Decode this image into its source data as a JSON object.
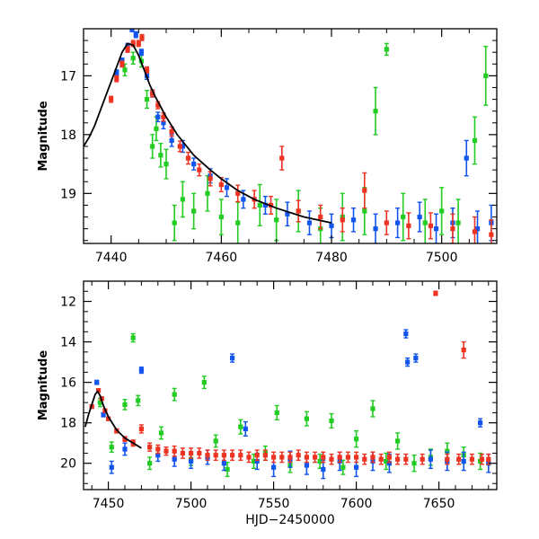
{
  "chart_data": [
    {
      "type": "scatter",
      "title": "",
      "xlabel": "",
      "ylabel": "Magnitude",
      "xlim": [
        7435,
        7510
      ],
      "ylim": [
        19.85,
        16.2
      ],
      "y_inverted": true,
      "grid": false,
      "legend": "none",
      "x_ticks": [
        7440,
        7460,
        7480,
        7500
      ],
      "y_ticks": [
        17,
        18,
        19
      ],
      "model_curve": {
        "color": "#000000",
        "x": [
          7435,
          7436,
          7437,
          7438,
          7439,
          7440,
          7441,
          7442,
          7443,
          7444,
          7445,
          7446,
          7447,
          7448,
          7450,
          7452,
          7455,
          7458,
          7460,
          7463,
          7466,
          7470,
          7475,
          7480
        ],
        "y": [
          18.2,
          18.05,
          17.85,
          17.6,
          17.35,
          17.1,
          16.85,
          16.6,
          16.45,
          16.48,
          16.65,
          16.9,
          17.15,
          17.35,
          17.7,
          18.0,
          18.35,
          18.6,
          18.75,
          18.95,
          19.1,
          19.25,
          19.4,
          19.5
        ]
      },
      "series": [
        {
          "name": "",
          "color": "#22cc22",
          "x": [
            7442.5,
            7444.0,
            7445.5,
            7446.5,
            7447.5,
            7448.2,
            7449.0,
            7450.0,
            7451.5,
            7453.0,
            7455.0,
            7457.5,
            7460.0,
            7463.0,
            7467.0,
            7470.0,
            7474.0,
            7478.0,
            7482.0,
            7486.0,
            7488.0,
            7490.0,
            7493.0,
            7497.0,
            7500.0,
            7503.0,
            7506.0,
            7508.0
          ],
          "y": [
            16.9,
            16.7,
            16.75,
            17.4,
            18.2,
            17.9,
            18.35,
            18.5,
            19.5,
            19.1,
            19.3,
            19.0,
            19.4,
            19.5,
            19.2,
            19.45,
            19.3,
            19.6,
            19.4,
            19.3,
            17.6,
            16.55,
            19.4,
            19.5,
            19.3,
            19.5,
            18.1,
            17.0
          ],
          "err": [
            0.1,
            0.1,
            0.1,
            0.15,
            0.2,
            0.2,
            0.2,
            0.25,
            0.3,
            0.3,
            0.3,
            0.3,
            0.3,
            0.35,
            0.35,
            0.35,
            0.35,
            0.35,
            0.4,
            0.4,
            0.4,
            0.1,
            0.4,
            0.4,
            0.4,
            0.4,
            0.4,
            0.5
          ]
        },
        {
          "name": "",
          "color": "#1155ee",
          "x": [
            7441.0,
            7442.0,
            7443.0,
            7443.8,
            7444.5,
            7445.5,
            7446.5,
            7447.5,
            7448.5,
            7449.5,
            7451.0,
            7453.0,
            7455.0,
            7458.0,
            7461.0,
            7464.0,
            7468.0,
            7472.0,
            7476.0,
            7480.0,
            7484.0,
            7488.0,
            7492.0,
            7496.0,
            7499.0,
            7502.0,
            7504.5,
            7506.5,
            7509.0
          ],
          "y": [
            16.95,
            16.75,
            16.5,
            16.2,
            16.3,
            16.6,
            17.0,
            17.3,
            17.7,
            17.8,
            18.1,
            18.2,
            18.5,
            18.7,
            18.9,
            19.1,
            19.2,
            19.35,
            19.5,
            19.55,
            19.45,
            19.6,
            19.5,
            19.4,
            19.6,
            19.5,
            18.4,
            19.6,
            19.5
          ],
          "err": [
            0.05,
            0.05,
            0.05,
            0.05,
            0.05,
            0.05,
            0.06,
            0.06,
            0.08,
            0.1,
            0.1,
            0.1,
            0.1,
            0.12,
            0.15,
            0.15,
            0.15,
            0.2,
            0.2,
            0.2,
            0.2,
            0.25,
            0.25,
            0.25,
            0.25,
            0.25,
            0.3,
            0.3,
            0.3
          ]
        },
        {
          "name": "",
          "color": "#ee3322",
          "x": [
            7440.0,
            7441.0,
            7442.0,
            7443.0,
            7444.0,
            7445.0,
            7445.6,
            7446.5,
            7447.5,
            7448.5,
            7449.5,
            7451.0,
            7452.5,
            7454.0,
            7456.0,
            7458.0,
            7460.0,
            7463.0,
            7466.0,
            7469.0,
            7471.0,
            7474.0,
            7478.0,
            7482.0,
            7486.0,
            7490.0,
            7494.0,
            7498.0,
            7502.0,
            7506.0,
            7509.0
          ],
          "y": [
            17.4,
            17.05,
            16.8,
            16.55,
            16.45,
            16.45,
            16.35,
            16.9,
            17.3,
            17.5,
            17.7,
            17.95,
            18.2,
            18.4,
            18.6,
            18.75,
            18.85,
            19.0,
            19.1,
            19.2,
            18.4,
            19.3,
            19.4,
            19.45,
            18.95,
            19.5,
            19.55,
            19.55,
            19.6,
            19.65,
            19.7
          ],
          "err": [
            0.05,
            0.05,
            0.05,
            0.05,
            0.05,
            0.05,
            0.05,
            0.05,
            0.06,
            0.06,
            0.07,
            0.08,
            0.09,
            0.1,
            0.1,
            0.12,
            0.12,
            0.14,
            0.15,
            0.15,
            0.2,
            0.18,
            0.2,
            0.2,
            0.3,
            0.2,
            0.22,
            0.22,
            0.25,
            0.25,
            0.25
          ]
        }
      ]
    },
    {
      "type": "scatter",
      "title": "",
      "xlabel": "HJD−2450000",
      "ylabel": "Magnitude",
      "xlim": [
        7435,
        7685
      ],
      "ylim": [
        21.3,
        11.0
      ],
      "y_inverted": true,
      "grid": false,
      "legend": "none",
      "x_ticks": [
        7450,
        7500,
        7550,
        7600,
        7650
      ],
      "y_ticks": [
        12,
        14,
        16,
        18,
        20
      ],
      "model_curve": {
        "color": "#000000",
        "x": [
          7436,
          7438,
          7440,
          7442,
          7443.5,
          7445,
          7447,
          7450,
          7455,
          7460,
          7470
        ],
        "y": [
          18.2,
          17.6,
          17.1,
          16.6,
          16.45,
          16.65,
          17.15,
          17.7,
          18.35,
          18.75,
          19.25
        ]
      },
      "series": [
        {
          "name": "",
          "color": "#22cc22",
          "x": [
            7445,
            7452,
            7460,
            7465,
            7468,
            7475,
            7482,
            7490,
            7500,
            7508,
            7515,
            7522,
            7530,
            7538,
            7545,
            7552,
            7560,
            7570,
            7578,
            7585,
            7592,
            7600,
            7610,
            7618,
            7625,
            7635,
            7645,
            7655,
            7665,
            7675
          ],
          "y": [
            17.0,
            19.2,
            17.1,
            13.8,
            16.9,
            20.0,
            18.5,
            16.6,
            19.8,
            16.0,
            18.9,
            20.3,
            18.2,
            19.9,
            19.5,
            17.5,
            20.1,
            17.8,
            19.9,
            17.9,
            20.2,
            18.8,
            17.3,
            19.9,
            18.9,
            20.0,
            19.7,
            19.4,
            19.6,
            19.9
          ],
          "err": [
            0.2,
            0.25,
            0.25,
            0.2,
            0.25,
            0.3,
            0.3,
            0.3,
            0.3,
            0.3,
            0.3,
            0.35,
            0.35,
            0.35,
            0.35,
            0.35,
            0.35,
            0.35,
            0.35,
            0.35,
            0.35,
            0.4,
            0.4,
            0.4,
            0.4,
            0.4,
            0.4,
            0.4,
            0.4,
            0.4
          ]
        },
        {
          "name": "",
          "color": "#1155ee",
          "x": [
            7443,
            7447,
            7452,
            7460,
            7470,
            7480,
            7490,
            7500,
            7510,
            7520,
            7525,
            7533,
            7540,
            7550,
            7560,
            7570,
            7580,
            7590,
            7600,
            7610,
            7620,
            7630,
            7631,
            7636,
            7645,
            7655,
            7665,
            7675,
            7680
          ],
          "y": [
            16.0,
            17.6,
            20.2,
            19.3,
            15.4,
            19.6,
            19.8,
            19.9,
            19.7,
            20.0,
            14.8,
            18.3,
            19.9,
            20.2,
            19.8,
            20.1,
            20.3,
            19.9,
            20.2,
            19.9,
            20.0,
            13.6,
            15.0,
            14.8,
            19.8,
            19.9,
            19.9,
            18.0,
            20.0
          ],
          "err": [
            0.1,
            0.1,
            0.3,
            0.3,
            0.15,
            0.3,
            0.35,
            0.35,
            0.35,
            0.35,
            0.2,
            0.35,
            0.4,
            0.45,
            0.4,
            0.45,
            0.45,
            0.45,
            0.45,
            0.45,
            0.45,
            0.2,
            0.2,
            0.2,
            0.45,
            0.45,
            0.45,
            0.2,
            0.45
          ]
        },
        {
          "name": "",
          "color": "#ee3322",
          "x": [
            7440,
            7444,
            7446,
            7448,
            7450,
            7455,
            7460,
            7465,
            7470,
            7475,
            7480,
            7485,
            7490,
            7495,
            7500,
            7505,
            7510,
            7515,
            7520,
            7525,
            7530,
            7535,
            7540,
            7545,
            7550,
            7555,
            7560,
            7565,
            7570,
            7575,
            7580,
            7585,
            7590,
            7595,
            7600,
            7605,
            7610,
            7615,
            7620,
            7625,
            7630,
            7640,
            7648,
            7655,
            7662,
            7665,
            7670,
            7676,
            7680
          ],
          "y": [
            17.2,
            16.4,
            16.8,
            17.4,
            17.8,
            18.4,
            18.8,
            19.0,
            18.3,
            19.2,
            19.3,
            19.4,
            19.4,
            19.5,
            19.5,
            19.5,
            19.6,
            19.6,
            19.6,
            19.6,
            19.6,
            19.7,
            19.6,
            19.6,
            19.7,
            19.7,
            19.7,
            19.6,
            19.7,
            19.7,
            19.7,
            19.8,
            19.7,
            19.7,
            19.7,
            19.8,
            19.7,
            19.8,
            19.7,
            19.8,
            19.8,
            19.8,
            11.6,
            19.8,
            19.8,
            14.4,
            19.8,
            19.8,
            19.8
          ],
          "err": [
            0.05,
            0.05,
            0.05,
            0.06,
            0.08,
            0.1,
            0.12,
            0.15,
            0.2,
            0.2,
            0.2,
            0.2,
            0.25,
            0.25,
            0.25,
            0.25,
            0.25,
            0.25,
            0.25,
            0.25,
            0.25,
            0.25,
            0.25,
            0.25,
            0.25,
            0.25,
            0.25,
            0.25,
            0.25,
            0.25,
            0.25,
            0.25,
            0.25,
            0.25,
            0.25,
            0.25,
            0.25,
            0.25,
            0.25,
            0.25,
            0.25,
            0.25,
            0.1,
            0.25,
            0.25,
            0.4,
            0.25,
            0.25,
            0.25
          ]
        }
      ]
    }
  ]
}
